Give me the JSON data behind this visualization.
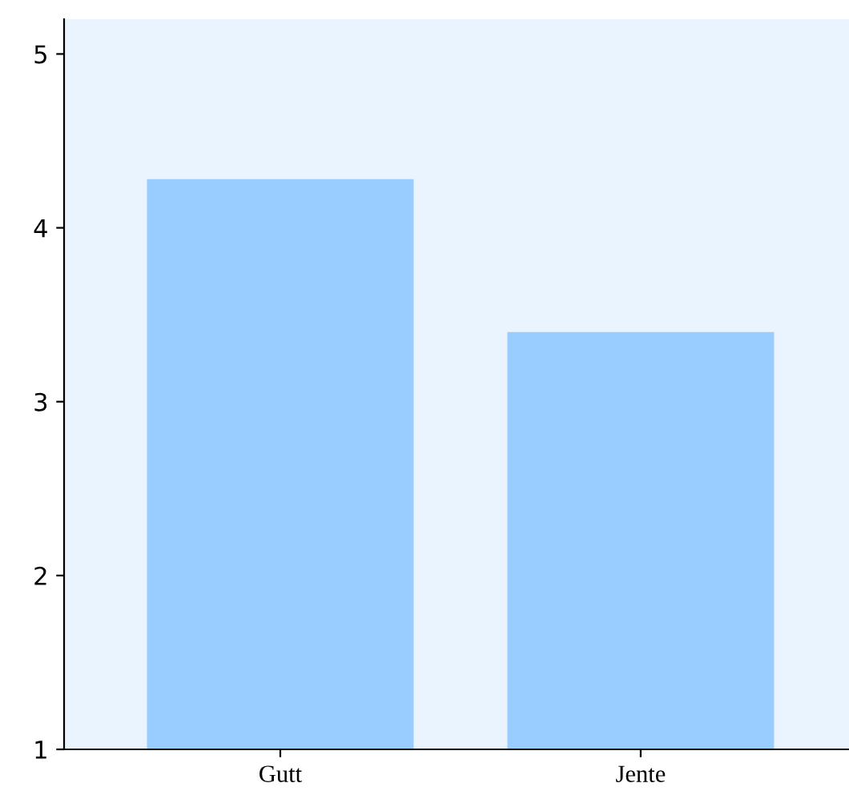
{
  "chart_data": {
    "type": "bar",
    "categories": [
      "Gutt",
      "Jente"
    ],
    "values": [
      4.28,
      3.4
    ],
    "color": "#99ccff",
    "ylim": [
      1,
      5.2
    ],
    "yticks": [
      1,
      2,
      3,
      4,
      5
    ],
    "grid": false
  }
}
